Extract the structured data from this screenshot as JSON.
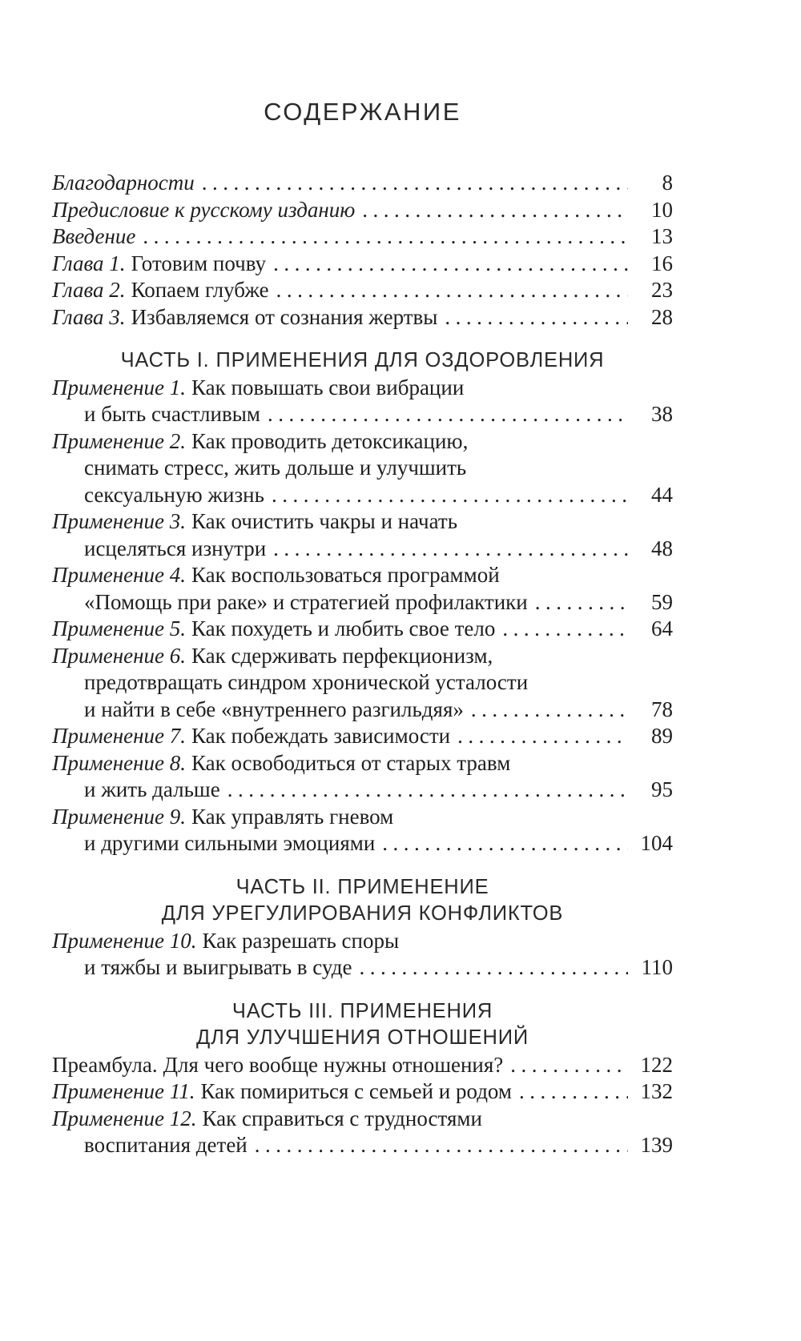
{
  "colors": {
    "paper": "#ffffff",
    "text": "#1f1f1f"
  },
  "toc": {
    "title": "СОДЕРЖАНИЕ",
    "sections": [
      {
        "header": [],
        "entries": [
          [
            {
              "lead": "Благодарности",
              "lead_italic": true,
              "text": "",
              "indent": false,
              "page": "8"
            }
          ],
          [
            {
              "lead": "Предисловие к русскому изданию",
              "lead_italic": true,
              "text": "",
              "indent": false,
              "page": "10"
            }
          ],
          [
            {
              "lead": "Введение",
              "lead_italic": true,
              "text": "",
              "indent": false,
              "page": "13"
            }
          ],
          [
            {
              "lead": "Глава 1.",
              "lead_italic": true,
              "text": "Готовим почву",
              "indent": false,
              "page": "16"
            }
          ],
          [
            {
              "lead": "Глава 2.",
              "lead_italic": true,
              "text": "Копаем глубже",
              "indent": false,
              "page": "23"
            }
          ],
          [
            {
              "lead": "Глава 3.",
              "lead_italic": true,
              "text": "Избавляемся от сознания жертвы",
              "indent": false,
              "page": "28"
            }
          ]
        ]
      },
      {
        "header": [
          "ЧАСТЬ I. ПРИМЕНЕНИЯ ДЛЯ ОЗДОРОВЛЕНИЯ"
        ],
        "entries": [
          [
            {
              "lead": "Применение 1.",
              "lead_italic": true,
              "text": "Как повышать свои вибрации",
              "indent": false,
              "page": null
            },
            {
              "lead": null,
              "text": "и быть счастливым",
              "indent": true,
              "page": "38"
            }
          ],
          [
            {
              "lead": "Применение 2.",
              "lead_italic": true,
              "text": "Как проводить детоксикацию,",
              "indent": false,
              "page": null
            },
            {
              "lead": null,
              "text": "снимать стресс, жить дольше и улучшить",
              "indent": true,
              "page": null
            },
            {
              "lead": null,
              "text": "сексуальную жизнь",
              "indent": true,
              "page": "44"
            }
          ],
          [
            {
              "lead": "Применение 3.",
              "lead_italic": true,
              "text": "Как очистить чакры и начать",
              "indent": false,
              "page": null
            },
            {
              "lead": null,
              "text": "исцеляться изнутри",
              "indent": true,
              "page": "48"
            }
          ],
          [
            {
              "lead": "Применение 4.",
              "lead_italic": true,
              "text": "Как воспользоваться программой",
              "indent": false,
              "page": null
            },
            {
              "lead": null,
              "text": "«Помощь при раке» и стратегией профилактики",
              "indent": true,
              "page": "59"
            }
          ],
          [
            {
              "lead": "Применение 5.",
              "lead_italic": true,
              "text": "Как похудеть и любить свое тело",
              "indent": false,
              "page": "64"
            }
          ],
          [
            {
              "lead": "Применение 6.",
              "lead_italic": true,
              "text": "Как сдерживать перфекционизм,",
              "indent": false,
              "page": null
            },
            {
              "lead": null,
              "text": "предотвращать синдром хронической усталости",
              "indent": true,
              "page": null
            },
            {
              "lead": null,
              "text": "и найти в себе «внутреннего разгильдяя»",
              "indent": true,
              "page": "78"
            }
          ],
          [
            {
              "lead": "Применение 7.",
              "lead_italic": true,
              "text": "Как побеждать зависимости",
              "indent": false,
              "page": "89"
            }
          ],
          [
            {
              "lead": "Применение 8.",
              "lead_italic": true,
              "text": "Как освободиться от старых травм",
              "indent": false,
              "page": null
            },
            {
              "lead": null,
              "text": "и жить дальше",
              "indent": true,
              "page": "95"
            }
          ],
          [
            {
              "lead": "Применение 9.",
              "lead_italic": true,
              "text": "Как управлять гневом",
              "indent": false,
              "page": null
            },
            {
              "lead": null,
              "text": "и другими сильными эмоциями",
              "indent": true,
              "page": "104"
            }
          ]
        ]
      },
      {
        "header": [
          "ЧАСТЬ II. ПРИМЕНЕНИЕ",
          "ДЛЯ УРЕГУЛИРОВАНИЯ КОНФЛИКТОВ"
        ],
        "entries": [
          [
            {
              "lead": "Применение 10.",
              "lead_italic": true,
              "text": "Как разрешать споры",
              "indent": false,
              "page": null
            },
            {
              "lead": null,
              "text": "и тяжбы и выигрывать в суде",
              "indent": true,
              "page": "110"
            }
          ]
        ]
      },
      {
        "header": [
          "ЧАСТЬ III. ПРИМЕНЕНИЯ",
          "ДЛЯ УЛУЧШЕНИЯ ОТНОШЕНИЙ"
        ],
        "entries": [
          [
            {
              "lead": "Преамбула.",
              "lead_italic": false,
              "text": "Для чего вообще нужны отношения?",
              "indent": false,
              "page": "122"
            }
          ],
          [
            {
              "lead": "Применение 11.",
              "lead_italic": true,
              "text": "Как помириться с семьей и родом",
              "indent": false,
              "page": "132"
            }
          ],
          [
            {
              "lead": "Применение 12.",
              "lead_italic": true,
              "text": "Как справиться с трудностями",
              "indent": false,
              "page": null
            },
            {
              "lead": null,
              "text": "воспитания детей",
              "indent": true,
              "page": "139"
            }
          ]
        ]
      }
    ]
  }
}
